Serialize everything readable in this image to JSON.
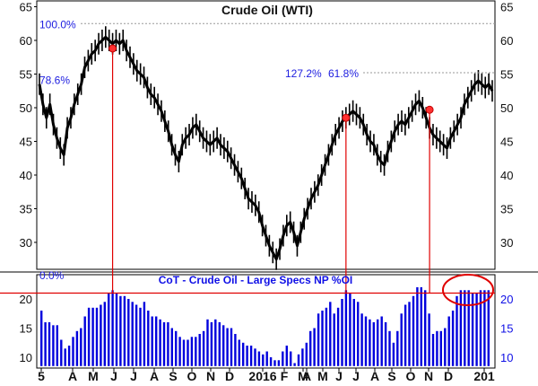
{
  "chart_data": [
    {
      "type": "line",
      "title": "Crude Oil (WTI)",
      "ylim": [
        25,
        65
      ],
      "y_ticks": [
        30,
        35,
        40,
        45,
        50,
        55,
        60,
        65
      ],
      "x_tick_labels": [
        "5",
        "A",
        "M",
        "J",
        "J",
        "A",
        "S",
        "O",
        "N",
        "D",
        "2016",
        "F",
        "M",
        "A",
        "M",
        "J",
        "J",
        "A",
        "S",
        "O",
        "N",
        "D",
        "201"
      ],
      "series": [
        {
          "values": [
            53.5,
            50.5,
            48.5,
            50.5,
            47.5,
            45.5,
            44.0,
            43.0,
            47.0,
            48.5,
            50.5,
            52.0,
            53.5,
            56.0,
            57.0,
            58.0,
            58.5,
            59.5,
            60.0,
            60.5,
            60.0,
            59.5,
            60.0,
            59.5,
            60.0,
            58.5,
            57.5,
            56.5,
            55.5,
            55.0,
            54.5,
            53.0,
            52.0,
            51.5,
            50.5,
            49.5,
            48.0,
            46.5,
            44.5,
            43.0,
            42.0,
            44.5,
            45.5,
            46.0,
            47.0,
            47.5,
            46.5,
            45.5,
            45.0,
            44.5,
            45.0,
            45.5,
            44.5,
            44.0,
            43.5,
            42.5,
            41.5,
            40.5,
            39.5,
            38.0,
            36.5,
            36.0,
            35.5,
            34.5,
            32.5,
            31.0,
            29.5,
            28.5,
            27.5,
            29.0,
            31.0,
            32.5,
            33.0,
            31.5,
            29.5,
            31.5,
            33.5,
            35.0,
            36.5,
            37.5,
            38.5,
            40.0,
            41.5,
            43.0,
            44.5,
            46.0,
            47.0,
            48.0,
            48.5,
            49.0,
            49.5,
            49.0,
            48.5,
            47.5,
            46.0,
            45.0,
            44.5,
            43.0,
            42.0,
            41.5,
            43.5,
            45.0,
            46.5,
            47.5,
            48.0,
            47.5,
            48.5,
            49.5,
            50.5,
            51.0,
            50.0,
            48.5,
            47.0,
            46.0,
            45.5,
            45.0,
            44.5,
            44.0,
            45.5,
            46.5,
            47.5,
            48.5,
            50.5,
            51.5,
            52.5,
            53.5,
            54.0,
            53.5,
            53.0,
            53.5,
            52.5
          ]
        }
      ],
      "annotations": [
        {
          "text": "100.0%",
          "y": 62.5,
          "line": true
        },
        {
          "text": "78.6%",
          "y": 54.2,
          "line": false
        },
        {
          "text": "127.2%",
          "y": 55.2,
          "line": false
        },
        {
          "text": "61.8%",
          "y": 55.2,
          "line": true
        },
        {
          "text": "0.0%",
          "y": 25.2,
          "line": false
        }
      ],
      "markers": [
        {
          "x_index": 21,
          "y": 58.8
        },
        {
          "x_index": 88,
          "y": 48.5
        },
        {
          "x_index": 112,
          "y": 49.7
        }
      ]
    },
    {
      "type": "bar",
      "title": "CoT - Crude Oil - Large Specs NP %OI",
      "ylim": [
        8.5,
        22.5
      ],
      "y_ticks": [
        10,
        15,
        20
      ],
      "reference_line": 21.0,
      "values": [
        18.0,
        16.0,
        16.0,
        15.5,
        15.5,
        13.0,
        11.5,
        12.0,
        13.5,
        14.5,
        15.0,
        17.0,
        18.5,
        18.5,
        18.5,
        19.0,
        19.5,
        21.0,
        21.5,
        21.0,
        20.5,
        20.5,
        20.0,
        19.5,
        19.0,
        18.5,
        19.5,
        18.0,
        17.0,
        17.0,
        16.5,
        16.0,
        16.0,
        15.0,
        14.5,
        13.5,
        13.0,
        13.0,
        13.5,
        13.5,
        14.0,
        14.5,
        16.5,
        16.0,
        16.5,
        16.0,
        15.5,
        15.0,
        15.0,
        14.0,
        13.0,
        12.5,
        12.0,
        12.0,
        11.5,
        11.0,
        10.5,
        11.0,
        10.0,
        9.5,
        9.5,
        11.0,
        12.0,
        11.0,
        9.0,
        10.5,
        11.5,
        12.5,
        14.5,
        15.0,
        17.5,
        18.0,
        18.5,
        19.5,
        17.5,
        18.5,
        20.0,
        21.5,
        21.0,
        20.0,
        19.5,
        17.5,
        17.0,
        16.5,
        16.0,
        16.5,
        17.0,
        16.0,
        14.5,
        12.5,
        14.5,
        17.5,
        19.0,
        19.5,
        20.5,
        22.0,
        22.0,
        21.5,
        17.5,
        14.0,
        14.5,
        14.5,
        15.0,
        17.0,
        18.0,
        20.5,
        21.5,
        21.5,
        21.5,
        21.0,
        21.0,
        21.5,
        21.5,
        21.5
      ]
    }
  ]
}
